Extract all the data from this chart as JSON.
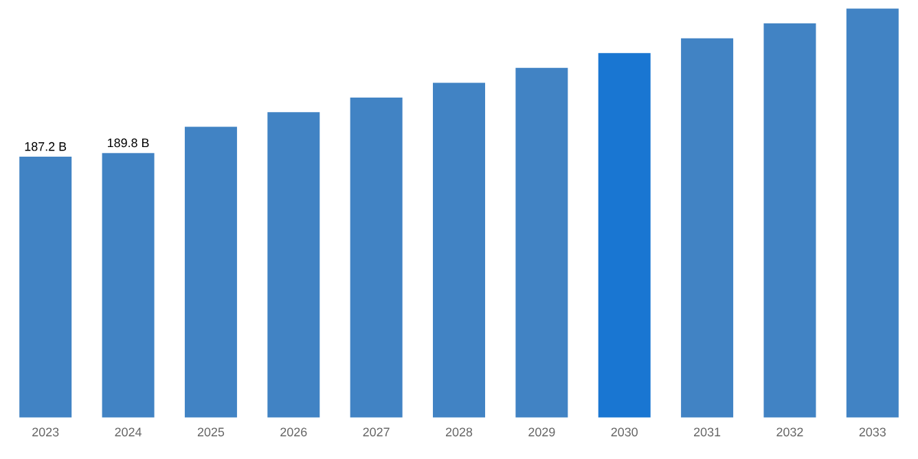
{
  "chart_data": {
    "type": "bar",
    "categories": [
      "2023",
      "2024",
      "2025",
      "2026",
      "2027",
      "2028",
      "2029",
      "2030",
      "2031",
      "2032",
      "2033"
    ],
    "values": [
      187.2,
      189.8,
      208.6,
      219.1,
      229.6,
      240.2,
      251.0,
      261.5,
      272.1,
      282.9,
      293.5
    ],
    "value_labels": [
      "187.2 B",
      "189.8 B",
      null,
      null,
      null,
      null,
      null,
      null,
      null,
      null,
      null
    ],
    "colors": [
      "#4183c4",
      "#4183c4",
      "#4183c4",
      "#4183c4",
      "#4183c4",
      "#4183c4",
      "#4183c4",
      "#1976d2",
      "#4183c4",
      "#4183c4",
      "#4183c4"
    ],
    "data_labels": false
  }
}
